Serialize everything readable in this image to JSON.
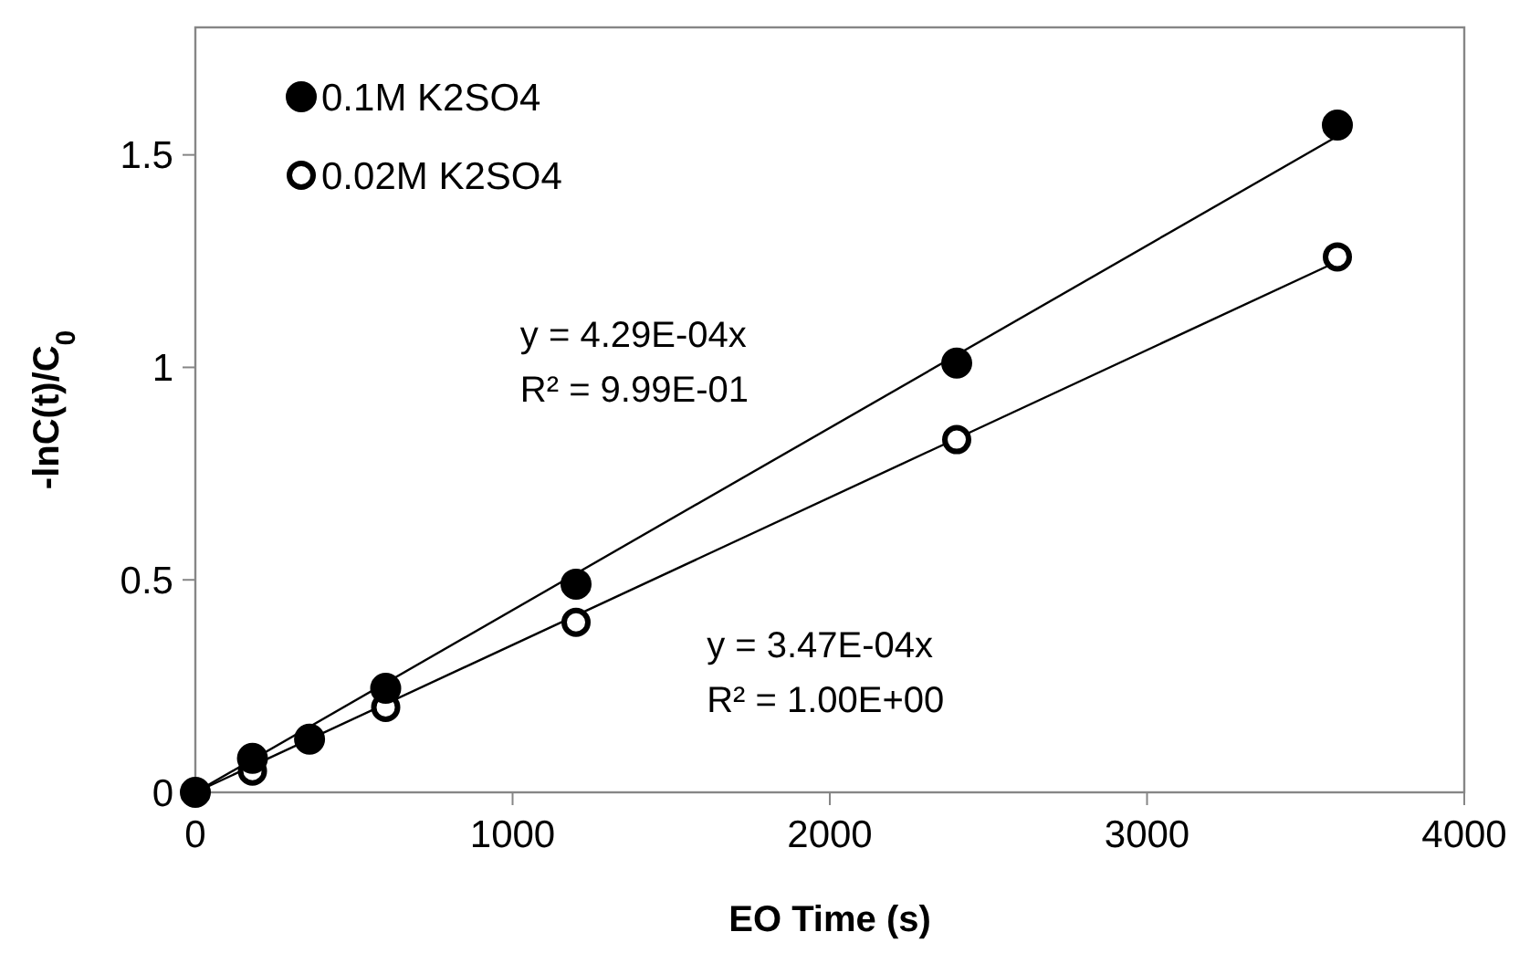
{
  "chart_data": {
    "type": "scatter",
    "xlabel": "EO Time (s)",
    "ylabel": "-lnC(t)/C$_{0}$",
    "xlim": [
      0,
      4000
    ],
    "xticks": [
      0,
      1000,
      2000,
      3000,
      4000
    ],
    "ylim": [
      0,
      1.8
    ],
    "yticks": [
      0,
      0.5,
      1,
      1.5
    ],
    "grid": false,
    "legend": "top left",
    "series": [
      {
        "name": "0.1M K2SO4",
        "color": "#000000",
        "marker": "circle",
        "x": [
          0,
          180,
          360,
          600,
          1200,
          2400,
          3600
        ],
        "values": [
          0,
          0.08,
          0.125,
          0.245,
          0.49,
          1.01,
          1.57
        ]
      },
      {
        "name": "0.02M K2SO4",
        "color": "#000000",
        "marker": "circle-open",
        "x": [
          180,
          600,
          1200,
          2400,
          3600
        ],
        "values": [
          0.05,
          0.2,
          0.4,
          0.83,
          1.26
        ]
      },
      {
        "type": "line",
        "color": "#000000",
        "line_style": "solid",
        "x": [
          0,
          3600
        ],
        "values": [
          0,
          1.544
        ]
      },
      {
        "type": "line",
        "color": "#000000",
        "line_style": "solid",
        "x": [
          0,
          3600
        ],
        "values": [
          0,
          1.249
        ]
      }
    ],
    "annotations": [
      "y = 4.29E-04x\nR² = 9.99E-01",
      "y = 3.47E-04x\nR² = 1.00E+00"
    ]
  }
}
